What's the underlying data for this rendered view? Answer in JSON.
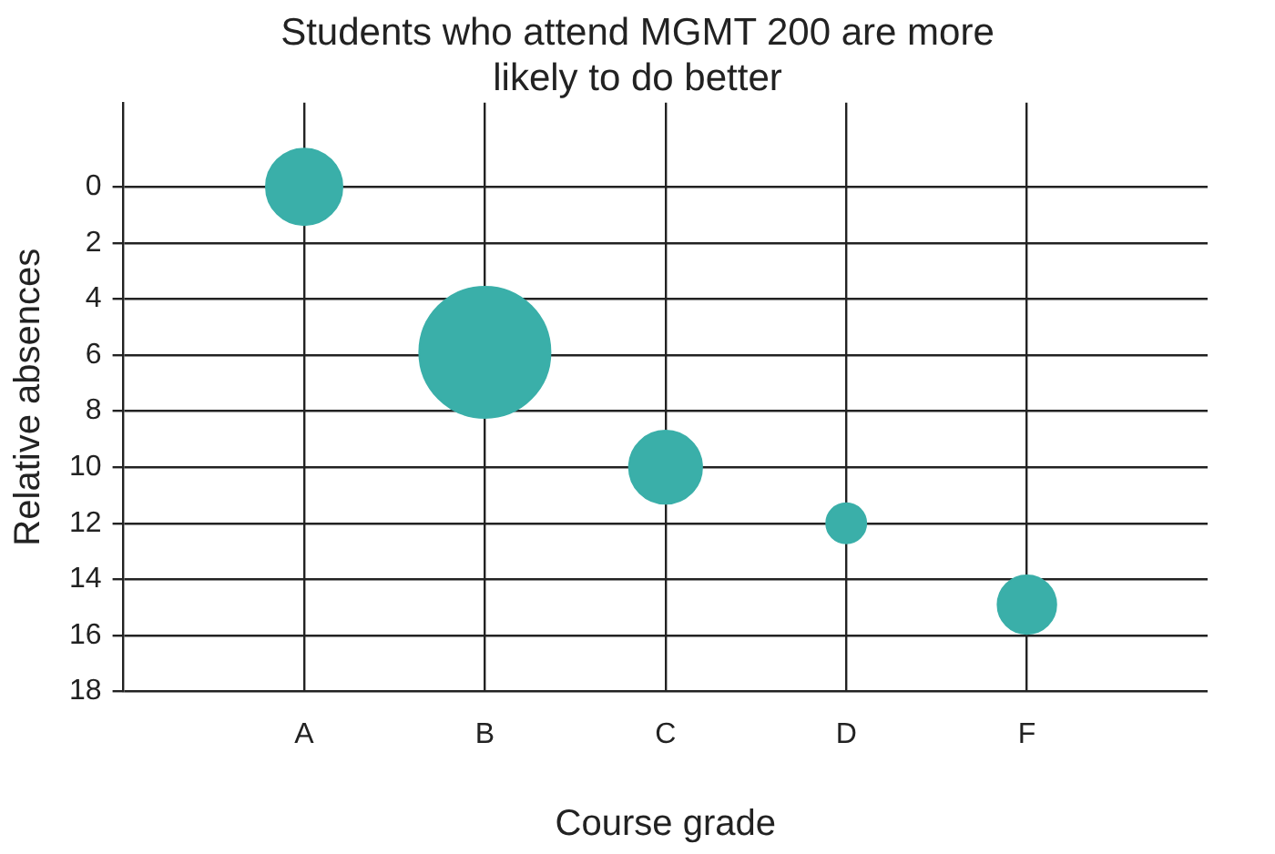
{
  "chart_data": {
    "type": "bubble",
    "title": "Students who attend MGMT 200 are more likely to do better",
    "xlabel": "Course grade",
    "ylabel": "Relative absences",
    "categories": [
      null,
      "A",
      "B",
      "C",
      "D",
      "F",
      null
    ],
    "series": [
      {
        "color": "#3aafa9",
        "values": [
          null,
          0,
          5.9,
          10,
          12,
          14.9,
          null
        ],
        "sizes": [
          null,
          0.34,
          1,
          0.31,
          0.093,
          0.2,
          null
        ]
      }
    ],
    "ylim": [
      18,
      -3
    ],
    "yticks": [
      0,
      2,
      4,
      6,
      8,
      10,
      12,
      14,
      16,
      18
    ],
    "grid": true,
    "legend": false
  }
}
